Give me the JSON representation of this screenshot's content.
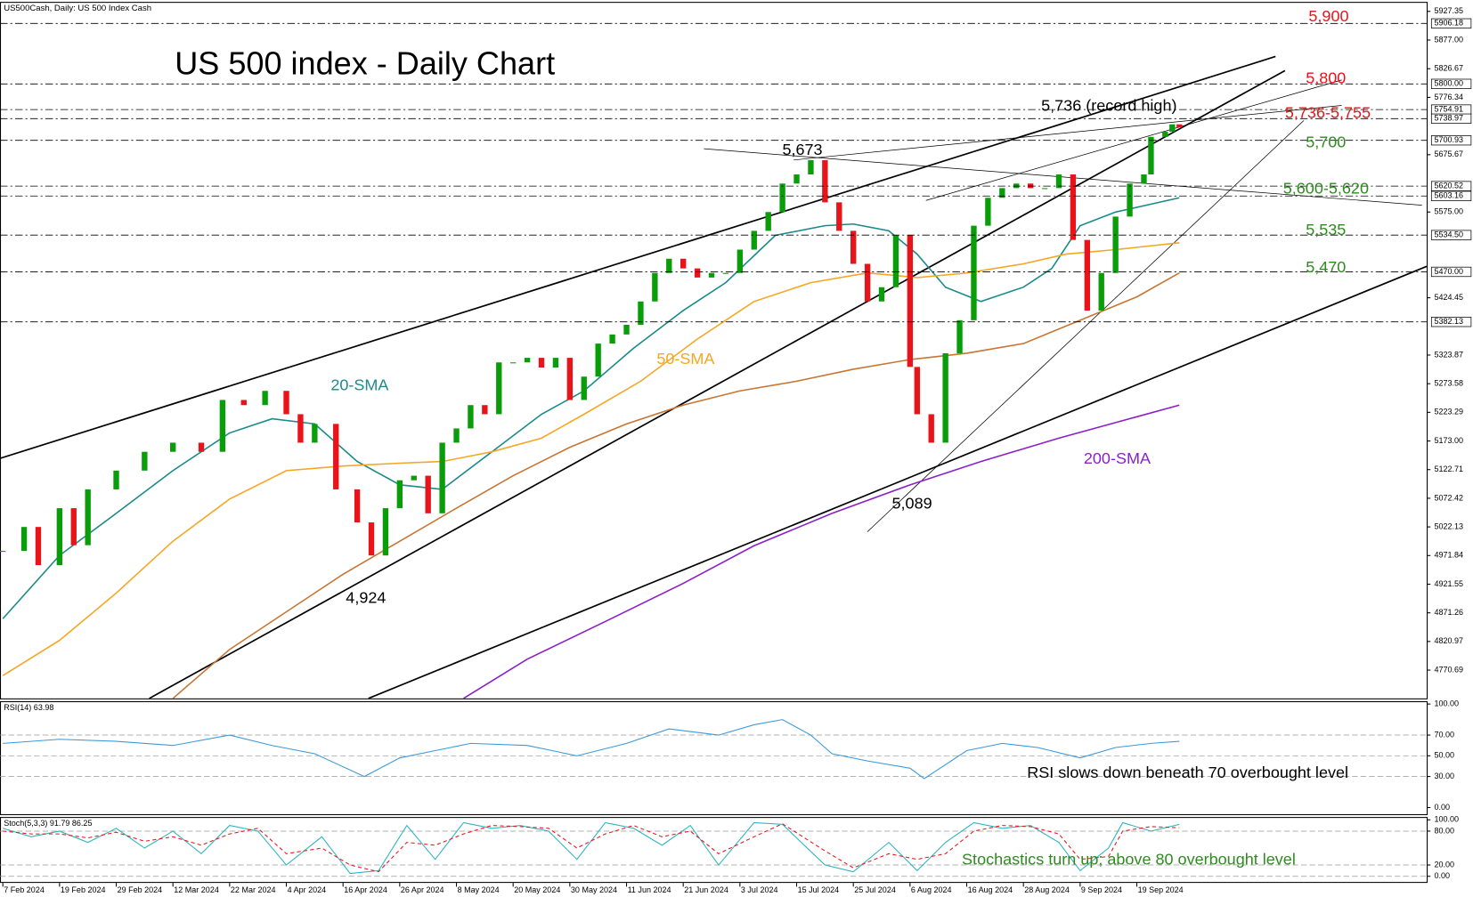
{
  "header": "US500Cash, Daily: US 500 Index Cash",
  "chart_data": [
    {
      "type": "candlestick",
      "title": "US 500 index - Daily Chart",
      "x": [
        0,
        3,
        5,
        8,
        10,
        12,
        16,
        20,
        24,
        28,
        31,
        34,
        37,
        40,
        42,
        44,
        47,
        50,
        52,
        54,
        56,
        58,
        60,
        62,
        64,
        66,
        68,
        70,
        72,
        74,
        76,
        78,
        80,
        82,
        84,
        86,
        88,
        90,
        92,
        94,
        96,
        98,
        100,
        102,
        104,
        106,
        108,
        110,
        112,
        114,
        116,
        118,
        120,
        122,
        124,
        126,
        128,
        129,
        131,
        133,
        135,
        137,
        139,
        141,
        143,
        145,
        147,
        149,
        151,
        153,
        155,
        157,
        159,
        161,
        162,
        164,
        165,
        166
      ],
      "close": [
        4980,
        5022,
        4955,
        5055,
        4990,
        5088,
        5121,
        5154,
        5170,
        5154,
        5245,
        5236,
        5261,
        5220,
        5170,
        5203,
        5088,
        5030,
        4972,
        5055,
        5104,
        5112,
        5046,
        5170,
        5195,
        5236,
        5220,
        5311,
        5311,
        5319,
        5302,
        5319,
        5245,
        5286,
        5344,
        5360,
        5377,
        5418,
        5468,
        5493,
        5476,
        5460,
        5468,
        5468,
        5509,
        5542,
        5575,
        5625,
        5641,
        5666,
        5592,
        5542,
        5484,
        5418,
        5443,
        5534,
        5303,
        5220,
        5170,
        5327,
        5385,
        5551,
        5600,
        5617,
        5625,
        5617,
        5617,
        5641,
        5526,
        5402,
        5468,
        5567,
        5625,
        5641,
        5707,
        5716,
        5729,
        5724
      ],
      "up_color": "#0a9d0a",
      "down_color": "#e8141a",
      "xlim": [
        -0.4,
        200.9
      ],
      "ylim": [
        4721,
        5944
      ],
      "xticks": [
        {
          "value": 0,
          "label": "7 Feb 2024"
        },
        {
          "value": 8,
          "label": "19 Feb 2024"
        },
        {
          "value": 16,
          "label": "29 Feb 2024"
        },
        {
          "value": 24,
          "label": "12 Mar 2024"
        },
        {
          "value": 32,
          "label": "22 Mar 2024"
        },
        {
          "value": 40,
          "label": "4 Apr 2024"
        },
        {
          "value": 48,
          "label": "16 Apr 2024"
        },
        {
          "value": 56,
          "label": "26 Apr 2024"
        },
        {
          "value": 64,
          "label": "8 May 2024"
        },
        {
          "value": 72,
          "label": "20 May 2024"
        },
        {
          "value": 80,
          "label": "30 May 2024"
        },
        {
          "value": 88,
          "label": "11 Jun 2024"
        },
        {
          "value": 96,
          "label": "21 Jun 2024"
        },
        {
          "value": 104,
          "label": "3 Jul 2024"
        },
        {
          "value": 112,
          "label": "15 Jul 2024"
        },
        {
          "value": 120,
          "label": "25 Jul 2024"
        },
        {
          "value": 128,
          "label": "6 Aug 2024"
        },
        {
          "value": 136,
          "label": "16 Aug 2024"
        },
        {
          "value": 144,
          "label": "28 Aug 2024"
        },
        {
          "value": 152,
          "label": "9 Sep 2024"
        },
        {
          "value": 160,
          "label": "19 Sep 2024"
        }
      ],
      "yticks": [
        5927.35,
        {
          "value": 5877,
          "label": "5877.00"
        },
        5826.67,
        5776.34,
        5675.67,
        {
          "value": 5575,
          "label": "5575.00"
        },
        5424.45,
        5323.87,
        5273.58,
        5223.29,
        {
          "value": 5173,
          "label": "5173.00"
        },
        5122.71,
        5072.42,
        5022.13,
        4971.84,
        4921.55,
        4871.26,
        4820.97,
        4770.69
      ],
      "levels": [
        5906.18,
        {
          "value": 5800,
          "label": "5800.00"
        },
        5754.91,
        5738.97,
        5700.93,
        5620.52,
        5603.16,
        {
          "value": 5534.5,
          "label": "5534.50"
        },
        {
          "value": 5470,
          "label": "5470.00"
        },
        5382.13
      ],
      "series": [
        {
          "name": "20-SMA",
          "color": "#1a8a8a",
          "x": [
            0,
            8,
            16,
            24,
            32,
            38,
            44,
            50,
            56,
            62,
            69,
            76,
            82,
            89,
            96,
            102,
            109,
            116,
            120,
            125,
            129,
            133,
            138,
            144,
            148,
            152,
            157,
            166
          ],
          "values": [
            4861,
            4972,
            5046,
            5121,
            5187,
            5212,
            5203,
            5137,
            5096,
            5088,
            5154,
            5220,
            5261,
            5336,
            5402,
            5451,
            5534,
            5551,
            5554,
            5542,
            5501,
            5443,
            5418,
            5443,
            5476,
            5551,
            5575,
            5600
          ]
        },
        {
          "name": "50-SMA",
          "color": "#f5a623",
          "x": [
            0,
            8,
            16,
            24,
            32,
            40,
            48,
            56,
            62,
            69,
            76,
            82,
            90,
            98,
            106,
            114,
            122,
            129,
            136,
            144,
            150,
            157,
            166
          ],
          "values": [
            4761,
            4823,
            4906,
            4997,
            5071,
            5121,
            5129,
            5134,
            5137,
            5154,
            5178,
            5220,
            5278,
            5352,
            5418,
            5451,
            5468,
            5460,
            5468,
            5484,
            5501,
            5509,
            5521
          ]
        },
        {
          "color": "#c87533",
          "x": [
            24,
            32,
            40,
            48,
            56,
            64,
            72,
            80,
            88,
            96,
            104,
            112,
            120,
            128,
            136,
            144,
            152,
            160,
            166
          ],
          "values": [
            4721,
            4807,
            4873,
            4939,
            4997,
            5055,
            5112,
            5162,
            5203,
            5236,
            5261,
            5278,
            5299,
            5316,
            5327,
            5344,
            5385,
            5426,
            5468
          ]
        },
        {
          "name": "200-SMA",
          "color": "#8b1fc9",
          "x": [
            65,
            74,
            85,
            96,
            106,
            117,
            128,
            138,
            149,
            166
          ],
          "values": [
            4721,
            4790,
            4856,
            4923,
            4989,
            5046,
            5096,
            5137,
            5178,
            5236
          ]
        }
      ],
      "annotations": [
        {
          "text": "5,900",
          "color": "#e8141a"
        },
        {
          "text": "5,800",
          "color": "#e8141a"
        },
        {
          "text": "5,736 (record high)",
          "color": "#000000"
        },
        {
          "text": "5,736-5,755",
          "color": "#e8141a"
        },
        {
          "text": "5,673",
          "color": "#000000"
        },
        {
          "text": "5,700",
          "color": "#2e8b1f"
        },
        {
          "text": "5,600-5,620",
          "color": "#2e8b1f"
        },
        {
          "text": "5,535",
          "color": "#2e8b1f"
        },
        {
          "text": "5,470",
          "color": "#2e8b1f"
        },
        {
          "text": "20-SMA",
          "color": "#1a8a8a"
        },
        {
          "text": "50-SMA",
          "color": "#f5a623"
        },
        {
          "text": "200-SMA",
          "color": "#8b1fc9"
        },
        {
          "text": "5,089",
          "color": "#000000"
        },
        {
          "text": "4,924",
          "color": "#000000"
        }
      ]
    },
    {
      "type": "line",
      "title": "RSI(14) 63.98",
      "x": [
        0,
        8,
        16,
        24,
        32,
        38,
        44,
        51,
        56,
        61,
        66,
        74,
        81,
        88,
        94,
        101,
        106,
        110,
        114,
        117,
        122,
        128,
        130,
        136,
        141,
        146,
        152,
        157,
        162,
        166
      ],
      "series": [
        {
          "color": "#3a9ad9",
          "values": [
            62,
            66,
            64,
            60,
            70,
            60,
            52,
            30,
            48,
            55,
            62,
            60,
            50,
            62,
            76,
            70,
            80,
            85,
            70,
            52,
            45,
            38,
            28,
            55,
            62,
            58,
            48,
            58,
            62,
            64
          ]
        }
      ],
      "xlim": [
        -0.4,
        200.9
      ],
      "ylim": [
        -7.3,
        102.7
      ],
      "yticks": [
        {
          "value": 100,
          "label": "100.00"
        },
        {
          "value": 70,
          "label": "70.00"
        },
        {
          "value": 50,
          "label": "50.00"
        },
        {
          "value": 30,
          "label": "30.00"
        },
        {
          "value": 0,
          "label": "0.00"
        }
      ],
      "grid": true,
      "annotation": {
        "text": "RSI slows down beneath 70 overbought level",
        "color": "#000000"
      }
    },
    {
      "type": "line",
      "title": "Stoch(5,3,3) 91.79 86.25",
      "x": [
        0,
        4,
        8,
        12,
        16,
        20,
        24,
        28,
        32,
        36,
        40,
        45,
        49,
        53,
        57,
        61,
        65,
        69,
        73,
        77,
        81,
        85,
        89,
        93,
        97,
        101,
        106,
        110,
        116,
        120,
        125,
        129,
        133,
        137,
        141,
        145,
        149,
        152,
        156,
        158,
        162,
        166
      ],
      "series": [
        {
          "color": "#2ab3c0",
          "values": [
            85,
            70,
            80,
            60,
            85,
            50,
            80,
            40,
            90,
            80,
            20,
            70,
            5,
            10,
            90,
            30,
            95,
            85,
            90,
            80,
            30,
            95,
            85,
            55,
            90,
            20,
            95,
            92,
            20,
            8,
            60,
            10,
            60,
            95,
            85,
            90,
            60,
            10,
            50,
            95,
            80,
            92
          ]
        },
        {
          "color": "#e8141a",
          "dashed": true,
          "values": [
            80,
            75,
            75,
            68,
            78,
            62,
            70,
            55,
            75,
            85,
            40,
            50,
            20,
            8,
            60,
            55,
            75,
            90,
            88,
            85,
            50,
            75,
            90,
            70,
            80,
            40,
            70,
            93,
            45,
            15,
            40,
            30,
            40,
            80,
            90,
            88,
            75,
            30,
            35,
            80,
            88,
            86
          ]
        }
      ],
      "xlim": [
        -0.4,
        200.9
      ],
      "ylim": [
        -11.7,
        105
      ],
      "yticks": [
        {
          "value": 100,
          "label": "100.00"
        },
        {
          "value": 80,
          "label": "80.00"
        },
        {
          "value": 20,
          "label": "20.00"
        },
        {
          "value": 0,
          "label": "0.00"
        }
      ],
      "grid": true,
      "annotation": {
        "text": "Stochastics turn up; above 80 overbought level",
        "color": "#2e8b1f"
      }
    }
  ]
}
